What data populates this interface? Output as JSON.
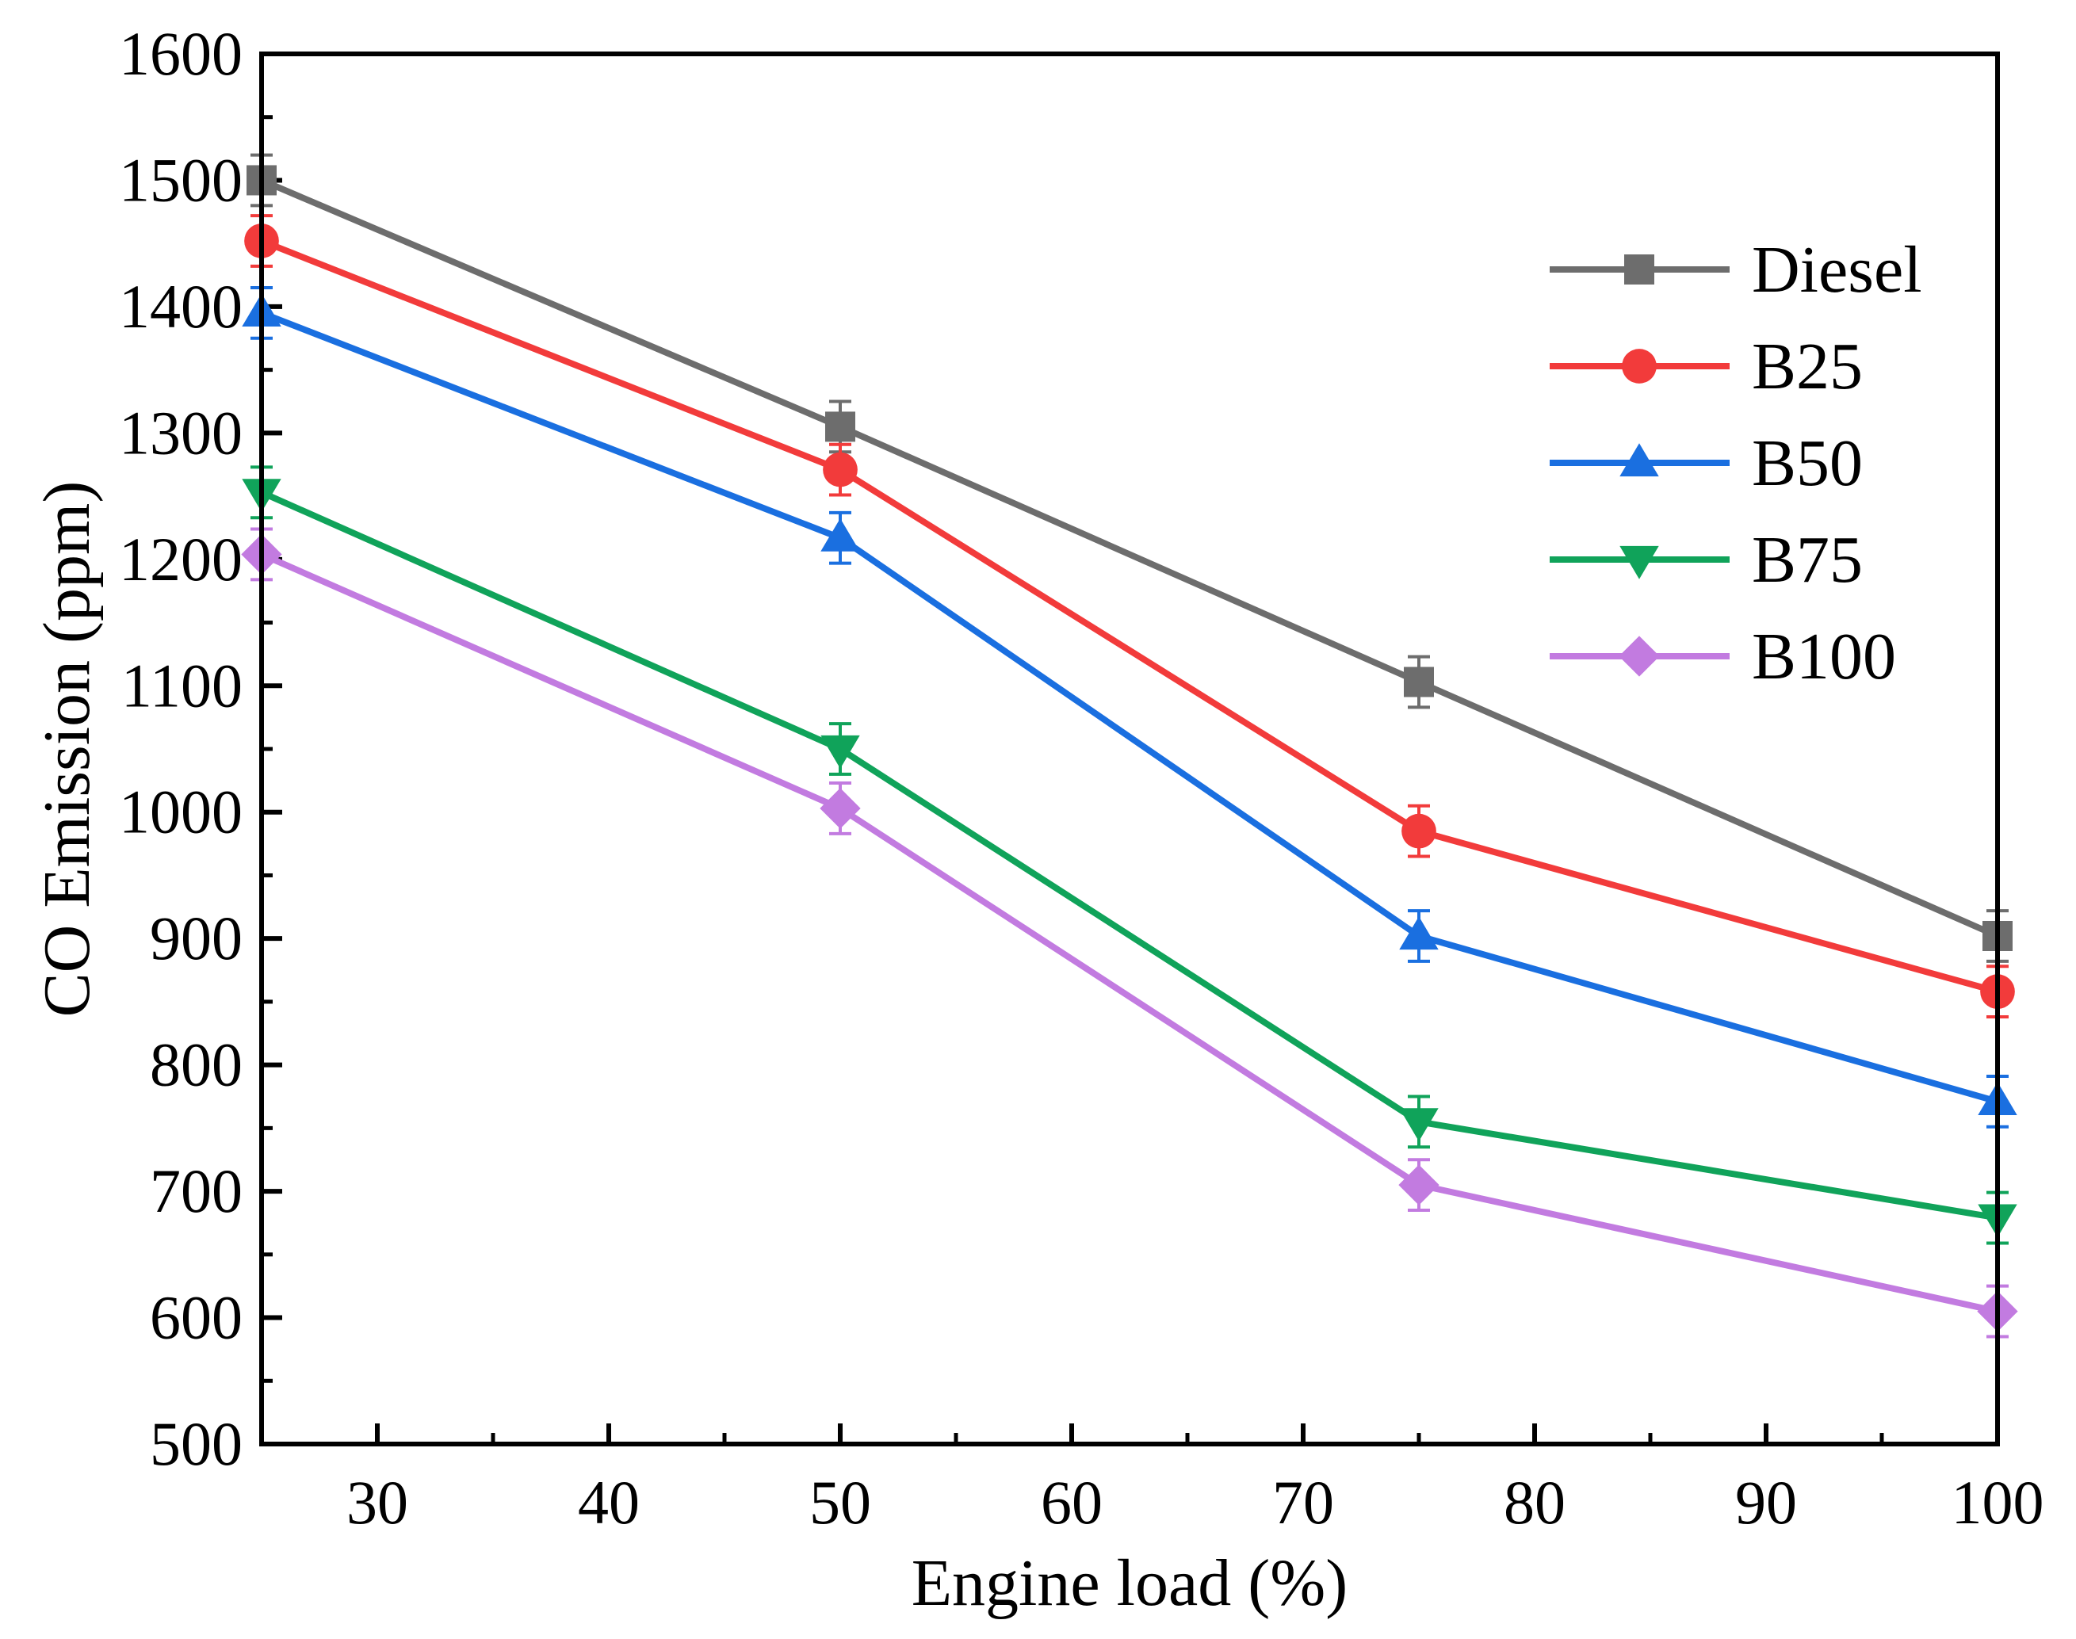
{
  "chart_data": {
    "type": "line",
    "title": "",
    "xlabel": "Engine load (%)",
    "ylabel": "CO Emission (ppm)",
    "xlim": [
      25,
      100
    ],
    "ylim": [
      500,
      1600
    ],
    "xticks": [
      30,
      40,
      50,
      60,
      70,
      80,
      90,
      100
    ],
    "yticks": [
      500,
      600,
      700,
      800,
      900,
      1000,
      1100,
      1200,
      1300,
      1400,
      1500,
      1600
    ],
    "grid": false,
    "legend_position": "top-right",
    "x": [
      25,
      50,
      75,
      100
    ],
    "error_bar": 20,
    "series": [
      {
        "name": "Diesel",
        "values": [
          1500,
          1305,
          1103,
          902
        ],
        "color": "#6d6d6d",
        "marker": "square"
      },
      {
        "name": "B25",
        "values": [
          1452,
          1271,
          985,
          858
        ],
        "color": "#f23b3b",
        "marker": "circle"
      },
      {
        "name": "B50",
        "values": [
          1395,
          1217,
          902,
          771
        ],
        "color": "#1a6fe0",
        "marker": "triangle-up"
      },
      {
        "name": "B75",
        "values": [
          1253,
          1050,
          755,
          679
        ],
        "color": "#10a35a",
        "marker": "triangle-down"
      },
      {
        "name": "B100",
        "values": [
          1204,
          1003,
          705,
          605
        ],
        "color": "#c27be0",
        "marker": "diamond"
      }
    ]
  }
}
